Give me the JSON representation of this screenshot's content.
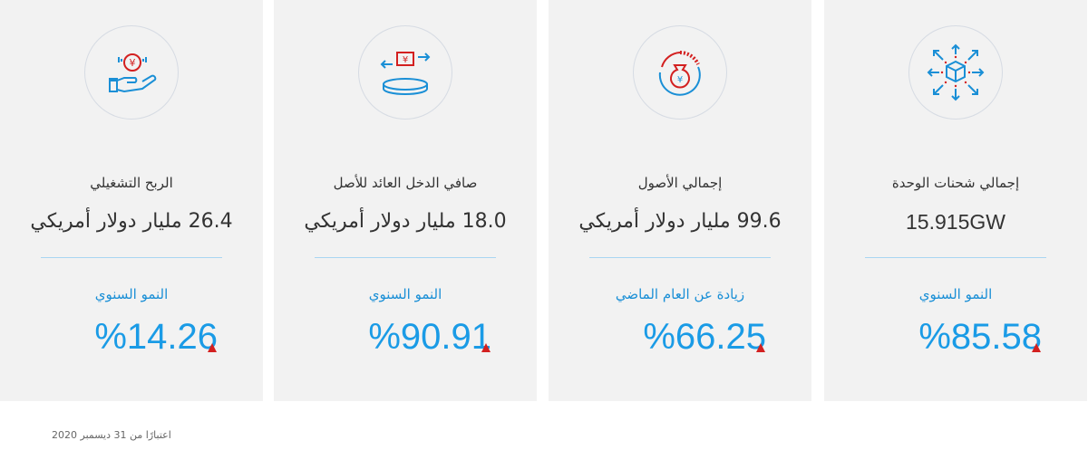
{
  "cards": [
    {
      "title": "الربح التشغيلي",
      "value": "26.4 مليار دولار أمريكي",
      "growth_label": "النمو السنوي",
      "growth_value": "%14.26",
      "trend": "up",
      "icon": "hand-yuan-icon"
    },
    {
      "title": "صافي الدخل العائد للأصل",
      "value": "18.0 مليار دولار أمريكي",
      "growth_label": "النمو السنوي",
      "growth_value": "%90.91",
      "trend": "up",
      "icon": "coin-exchange-icon"
    },
    {
      "title": "إجمالي الأصول",
      "value": "99.6 مليار دولار أمريكي",
      "growth_label": "زيادة عن العام الماضي",
      "growth_value": "%66.25",
      "trend": "up",
      "icon": "money-bag-gauge-icon"
    },
    {
      "title": "إجمالي شحنات الوحدة",
      "value": "15.915GW",
      "growth_label": "النمو السنوي",
      "growth_value": "%85.58",
      "trend": "up",
      "icon": "box-distribution-icon"
    }
  ],
  "footer": "اعتبارًا من 31 ديسمبر 2020",
  "colors": {
    "accent": "#1a9be6",
    "trend_up": "#d32020",
    "card_bg": "#f2f2f2"
  }
}
